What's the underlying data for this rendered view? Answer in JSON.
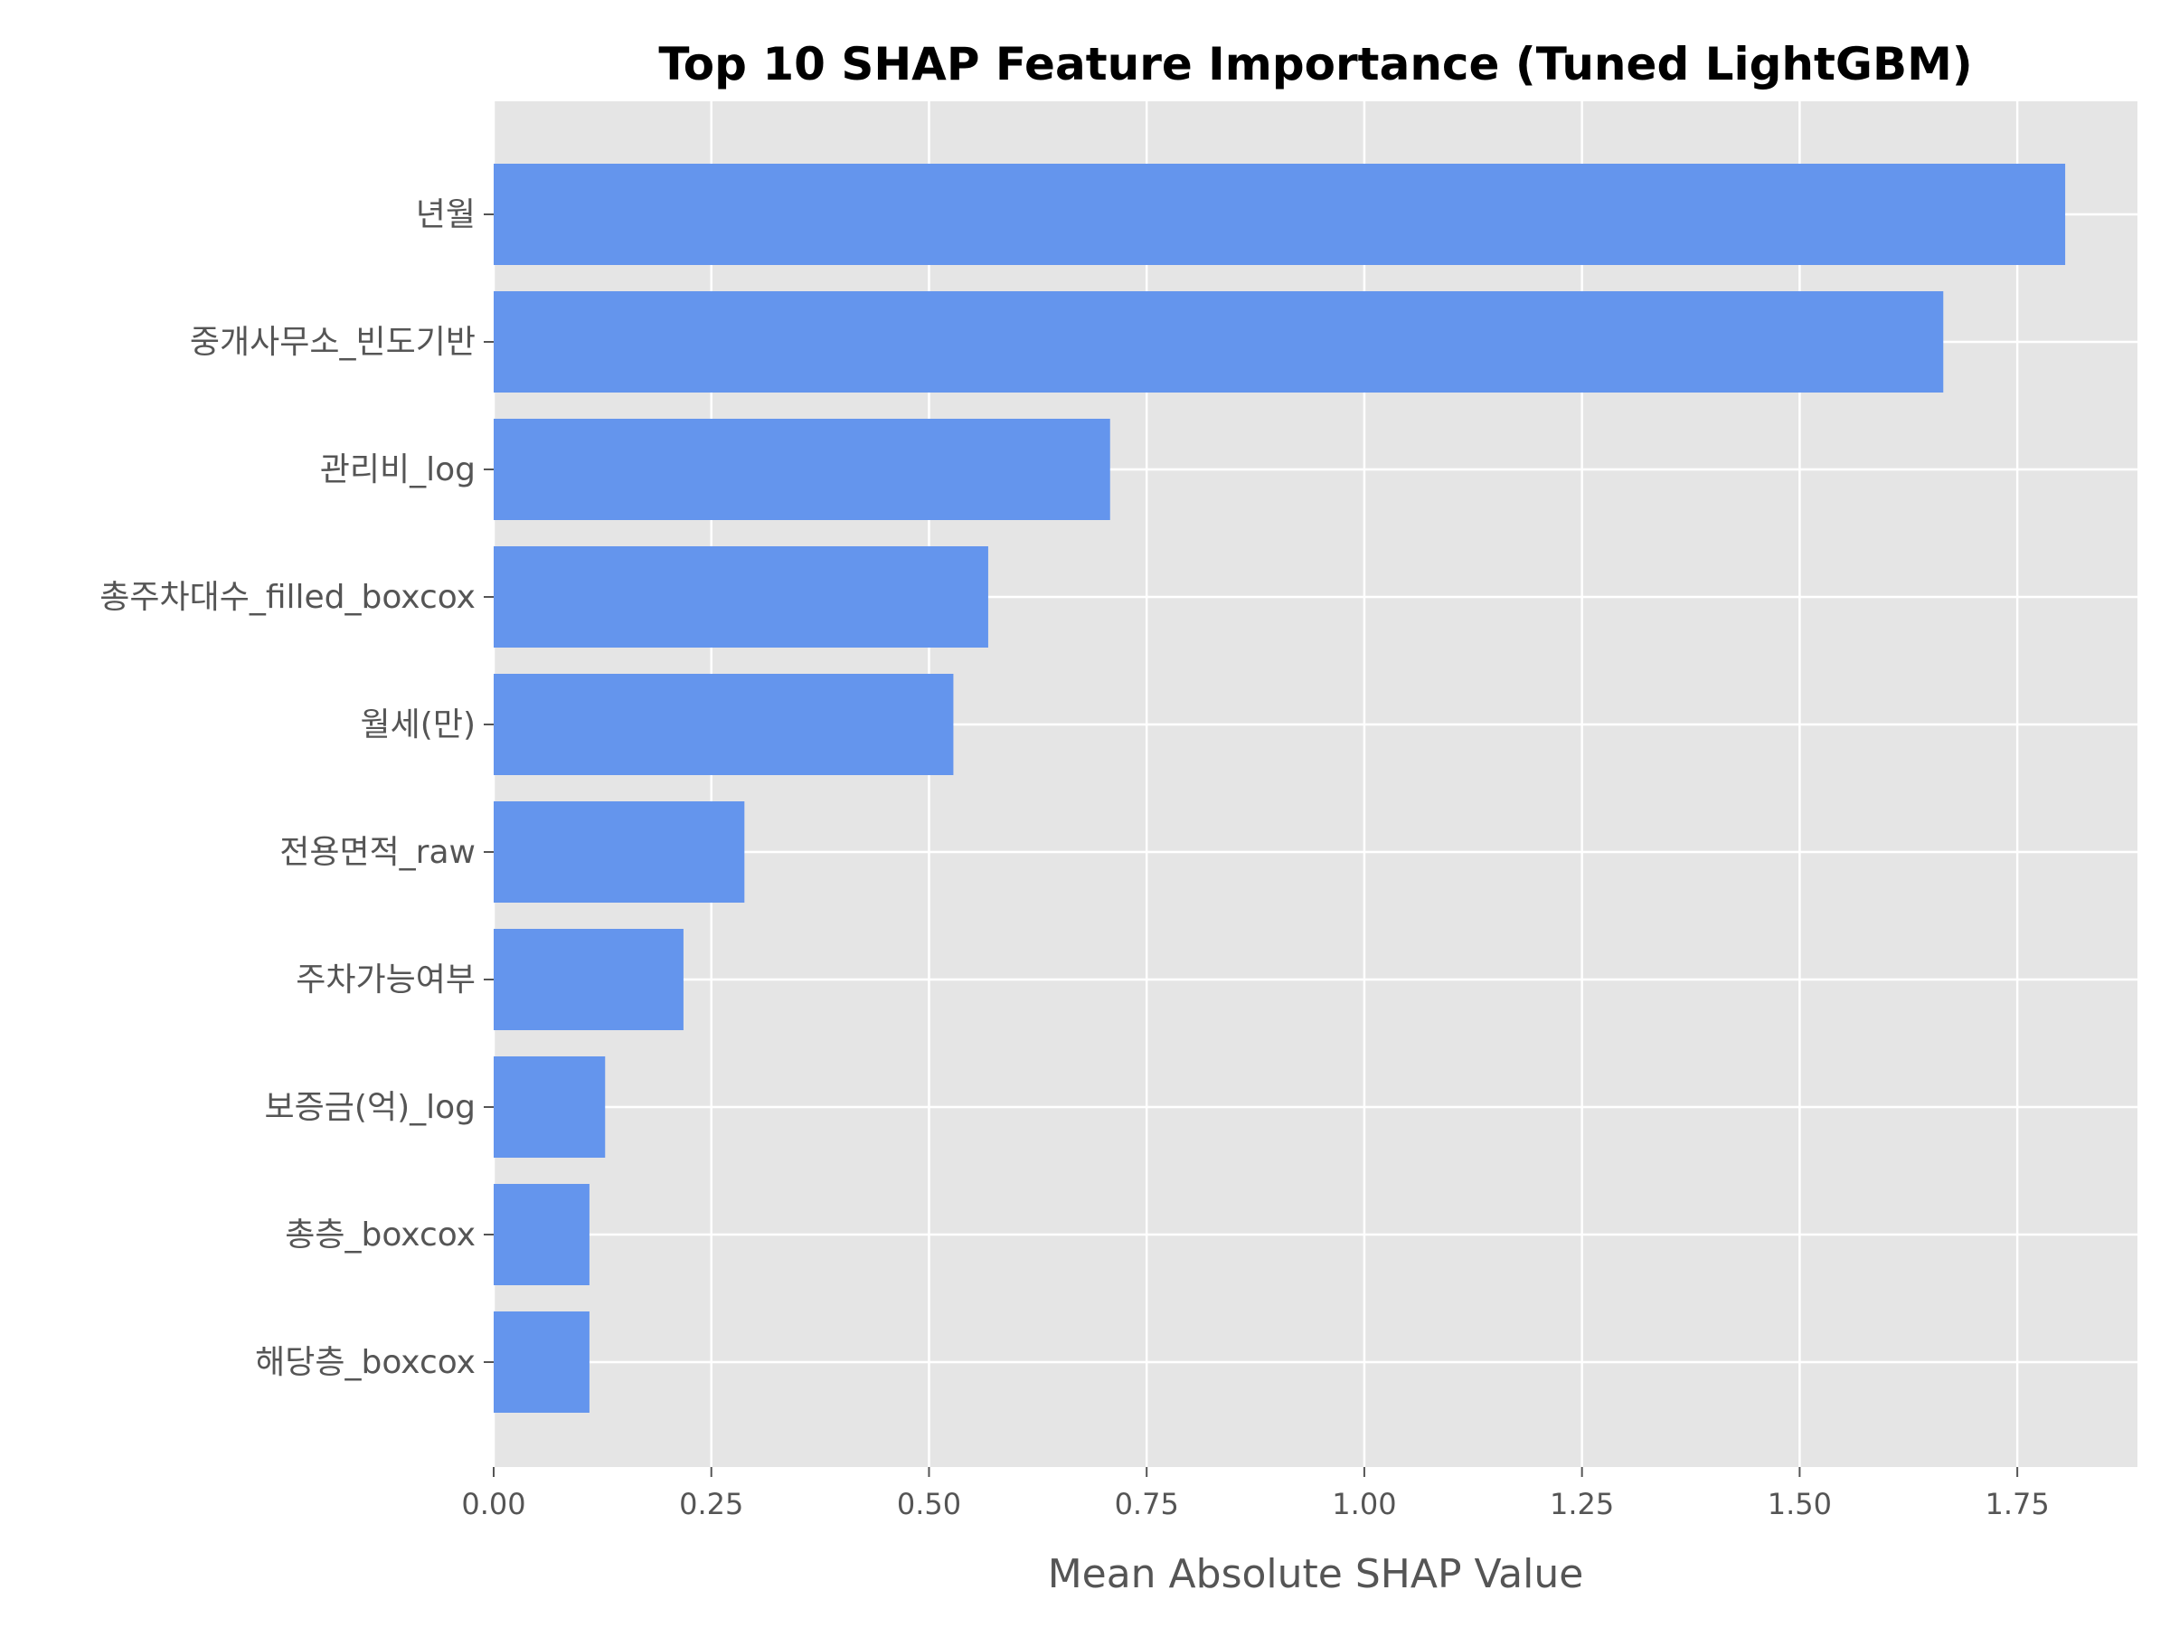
{
  "chart_data": {
    "type": "bar",
    "orientation": "horizontal",
    "title": "Top 10 SHAP Feature Importance (Tuned LightGBM)",
    "xlabel": "Mean Absolute SHAP Value",
    "ylabel": "",
    "xlim": [
      0,
      1.888
    ],
    "xticks": [
      0.0,
      0.25,
      0.5,
      0.75,
      1.0,
      1.25,
      1.5,
      1.75
    ],
    "xtick_labels": [
      "0.00",
      "0.25",
      "0.50",
      "0.75",
      "1.00",
      "1.25",
      "1.50",
      "1.75"
    ],
    "categories": [
      "년월",
      "중개사무소_빈도기반",
      "관리비_log",
      "총주차대수_filled_boxcox",
      "월세(만)",
      "전용면적_raw",
      "주차가능여부",
      "보증금(억)_log",
      "총층_boxcox",
      "해당층_boxcox"
    ],
    "values": [
      1.805,
      1.665,
      0.708,
      0.568,
      0.528,
      0.288,
      0.218,
      0.128,
      0.11,
      0.11
    ],
    "grid": true,
    "legend": "none",
    "colors": {
      "bar": "#6495ED",
      "plot_background": "#E5E5E5",
      "grid": "#FFFFFF",
      "text": "#555555"
    }
  }
}
